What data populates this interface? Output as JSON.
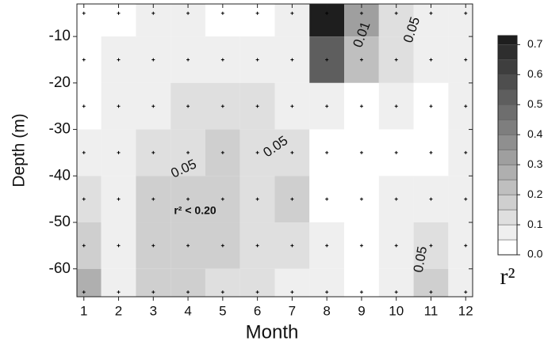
{
  "chart_data": {
    "type": "contour",
    "x_label": "Month",
    "y_label": "Depth (m)",
    "colorbar_label": "r²",
    "x": [
      1,
      2,
      3,
      4,
      5,
      6,
      7,
      8,
      9,
      10,
      11,
      12
    ],
    "y": [
      -5,
      -15,
      -25,
      -35,
      -45,
      -55,
      -65
    ],
    "z": [
      [
        0.02,
        0.03,
        0.07,
        0.07,
        0.02,
        0.02,
        0.05,
        0.7,
        0.3,
        0.1,
        0.05,
        0.05
      ],
      [
        0.02,
        0.05,
        0.07,
        0.05,
        0.05,
        0.05,
        0.07,
        0.5,
        0.2,
        0.1,
        0.05,
        0.05
      ],
      [
        0.02,
        0.07,
        0.05,
        0.12,
        0.12,
        0.12,
        0.07,
        0.05,
        0.02,
        0.05,
        0.02,
        0.05
      ],
      [
        0.05,
        0.07,
        0.1,
        0.1,
        0.17,
        0.12,
        0.13,
        0.02,
        0.02,
        0.02,
        0.02,
        0.05
      ],
      [
        0.1,
        0.07,
        0.17,
        0.17,
        0.15,
        0.1,
        0.17,
        0.02,
        0.02,
        0.05,
        0.05,
        0.05
      ],
      [
        0.15,
        0.07,
        0.18,
        0.17,
        0.15,
        0.1,
        0.12,
        0.05,
        0.02,
        0.05,
        0.12,
        0.05
      ],
      [
        0.25,
        0.07,
        0.17,
        0.17,
        0.12,
        0.1,
        0.07,
        0.05,
        0.02,
        0.05,
        0.17,
        0.05
      ]
    ],
    "xlim": [
      0.8,
      12.2
    ],
    "ylim": [
      -66,
      -3
    ],
    "xticks": [
      1,
      2,
      3,
      4,
      5,
      6,
      7,
      8,
      9,
      10,
      11,
      12
    ],
    "yticks": [
      -10,
      -20,
      -30,
      -40,
      -50,
      -60
    ],
    "levels": [
      0,
      0.05,
      0.1,
      0.15,
      0.2,
      0.25,
      0.3,
      0.35,
      0.4,
      0.45,
      0.5,
      0.55,
      0.6,
      0.65,
      0.7
    ],
    "clim": [
      0,
      0.73
    ],
    "cticks": [
      {
        "value": 0,
        "label": "0.0"
      },
      {
        "value": 0.1,
        "label": "0.1"
      },
      {
        "value": 0.2,
        "label": "0.2"
      },
      {
        "value": 0.3,
        "label": "0.3"
      },
      {
        "value": 0.4,
        "label": "0.4"
      },
      {
        "value": 0.5,
        "label": "0.5"
      },
      {
        "value": 0.6,
        "label": "0.6"
      },
      {
        "value": 0.7,
        "label": "0.7"
      }
    ],
    "annotations": [
      "0.05",
      "0.05",
      "0.01",
      "0.05",
      "0.05",
      "r² < 0.20"
    ]
  }
}
